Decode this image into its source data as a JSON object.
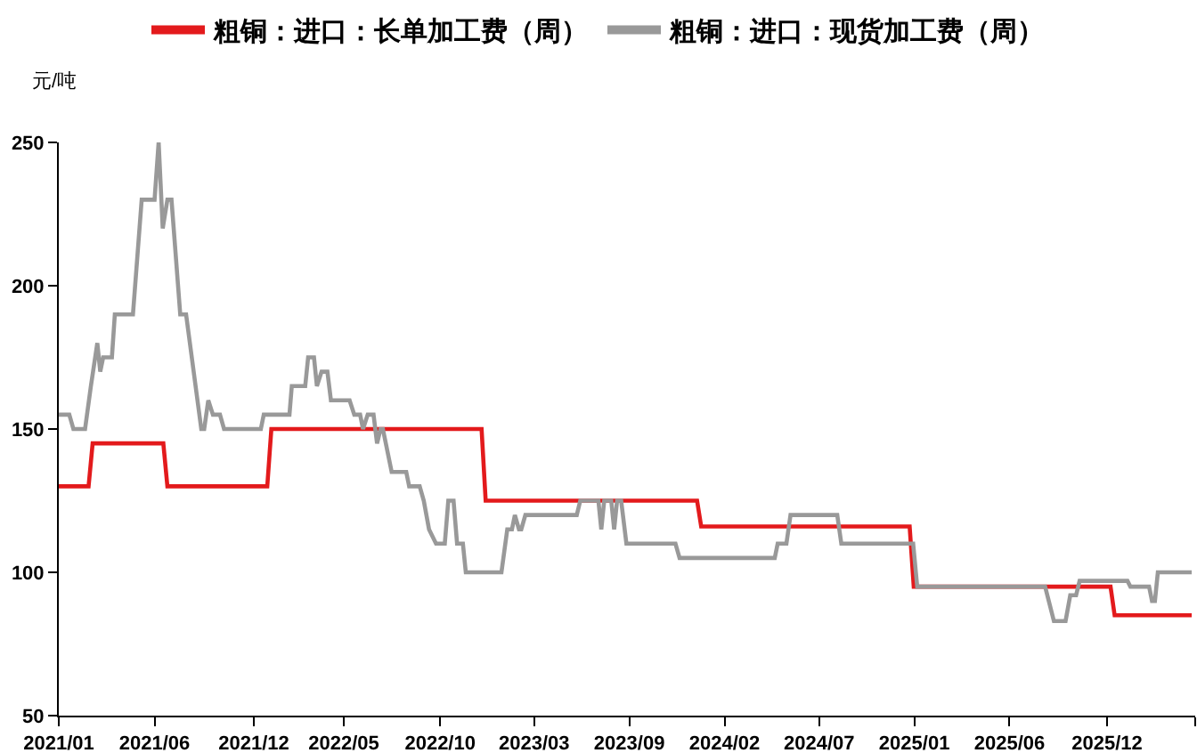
{
  "chart_data": {
    "type": "line",
    "ylabel": "元/吨",
    "legend": "top",
    "xlim": [
      "2021-01-01",
      "2026-05-01"
    ],
    "xticks": [
      {
        "value": "2021-01-01",
        "label": "2021/01"
      },
      {
        "value": "2021-06-14",
        "label": "2021/06"
      },
      {
        "value": "2021-12-01",
        "label": "2021/12"
      },
      {
        "value": "2022-05-04",
        "label": "2022/05"
      },
      {
        "value": "2022-10-16",
        "label": "2022/10"
      },
      {
        "value": "2023-03-26",
        "label": "2023/03"
      },
      {
        "value": "2023-09-05",
        "label": "2023/09"
      },
      {
        "value": "2024-02-15",
        "label": "2024/02"
      },
      {
        "value": "2024-07-26",
        "label": "2024/07"
      },
      {
        "value": "2025-01-05",
        "label": "2025/01"
      },
      {
        "value": "2025-06-17",
        "label": "2025/06"
      },
      {
        "value": "2025-12-01",
        "label": "2025/12"
      },
      {
        "value": "2026-05-01",
        "label": null
      }
    ],
    "ylim": [
      50,
      250
    ],
    "yticks": [
      50,
      100,
      150,
      200,
      250
    ],
    "series": [
      {
        "name": "粗铜：进口：长单加工费（周）",
        "color": "#e31a1c",
        "x": [
          "2021-01-01",
          "2021-02-21",
          "2021-02-28",
          "2021-06-29",
          "2021-07-06",
          "2021-12-24",
          "2021-12-31",
          "2022-12-26",
          "2023-01-02",
          "2023-12-30",
          "2024-01-06",
          "2024-12-28",
          "2025-01-04",
          "2025-12-07",
          "2025-12-14",
          "2026-04-25"
        ],
        "values": [
          130,
          130,
          145,
          145,
          130,
          130,
          150,
          150,
          125,
          125,
          116,
          116,
          95,
          95,
          85,
          85
        ]
      },
      {
        "name": "粗铜：进口：现货加工费（周）",
        "color": "#999999",
        "x": [
          "2021-01-01",
          "2021-01-19",
          "2021-01-26",
          "2021-02-15",
          "2021-02-25",
          "2021-03-08",
          "2021-03-13",
          "2021-03-18",
          "2021-04-02",
          "2021-04-07",
          "2021-05-08",
          "2021-05-23",
          "2021-06-14",
          "2021-06-21",
          "2021-06-28",
          "2021-07-06",
          "2021-07-13",
          "2021-07-28",
          "2021-08-07",
          "2021-09-02",
          "2021-09-07",
          "2021-09-14",
          "2021-09-22",
          "2021-10-04",
          "2021-10-11",
          "2021-12-13",
          "2021-12-18",
          "2022-01-31",
          "2022-02-04",
          "2022-02-27",
          "2022-03-04",
          "2022-03-14",
          "2022-03-19",
          "2022-03-27",
          "2022-04-06",
          "2022-04-12",
          "2022-05-14",
          "2022-05-22",
          "2022-06-01",
          "2022-06-06",
          "2022-06-14",
          "2022-06-24",
          "2022-06-30",
          "2022-07-06",
          "2022-07-10",
          "2022-07-25",
          "2022-08-19",
          "2022-08-24",
          "2022-09-11",
          "2022-09-18",
          "2022-09-27",
          "2022-10-09",
          "2022-10-24",
          "2022-10-30",
          "2022-11-08",
          "2022-11-14",
          "2022-11-24",
          "2022-11-29",
          "2023-01-29",
          "2023-02-08",
          "2023-02-16",
          "2023-02-21",
          "2023-02-28",
          "2023-03-04",
          "2023-03-11",
          "2023-06-07",
          "2023-06-13",
          "2023-07-14",
          "2023-07-19",
          "2023-07-24",
          "2023-08-05",
          "2023-08-10",
          "2023-08-15",
          "2023-08-22",
          "2023-08-31",
          "2023-11-23",
          "2023-11-30",
          "2024-05-11",
          "2024-05-16",
          "2024-05-31",
          "2024-06-07",
          "2024-08-26",
          "2024-09-02",
          "2025-01-03",
          "2025-01-10",
          "2025-08-17",
          "2025-09-01",
          "2025-09-21",
          "2025-09-29",
          "2025-10-09",
          "2025-10-15",
          "2026-01-05",
          "2026-01-10",
          "2026-02-11",
          "2026-02-16",
          "2026-02-21",
          "2026-02-26",
          "2026-04-25"
        ],
        "values": [
          155,
          155,
          150,
          150,
          165,
          180,
          170,
          175,
          175,
          190,
          190,
          230,
          230,
          250,
          220,
          230,
          230,
          190,
          190,
          150,
          150,
          160,
          155,
          155,
          150,
          150,
          155,
          155,
          165,
          165,
          175,
          175,
          165,
          170,
          170,
          160,
          160,
          155,
          155,
          150,
          155,
          155,
          145,
          150,
          150,
          135,
          135,
          130,
          130,
          125,
          115,
          110,
          110,
          125,
          125,
          110,
          110,
          100,
          100,
          115,
          115,
          120,
          115,
          115,
          120,
          120,
          125,
          125,
          115,
          125,
          125,
          115,
          125,
          125,
          110,
          110,
          105,
          105,
          110,
          110,
          120,
          120,
          110,
          110,
          95,
          95,
          83,
          83,
          92,
          92,
          97,
          97,
          95,
          95,
          90,
          90,
          100,
          100
        ]
      }
    ]
  }
}
